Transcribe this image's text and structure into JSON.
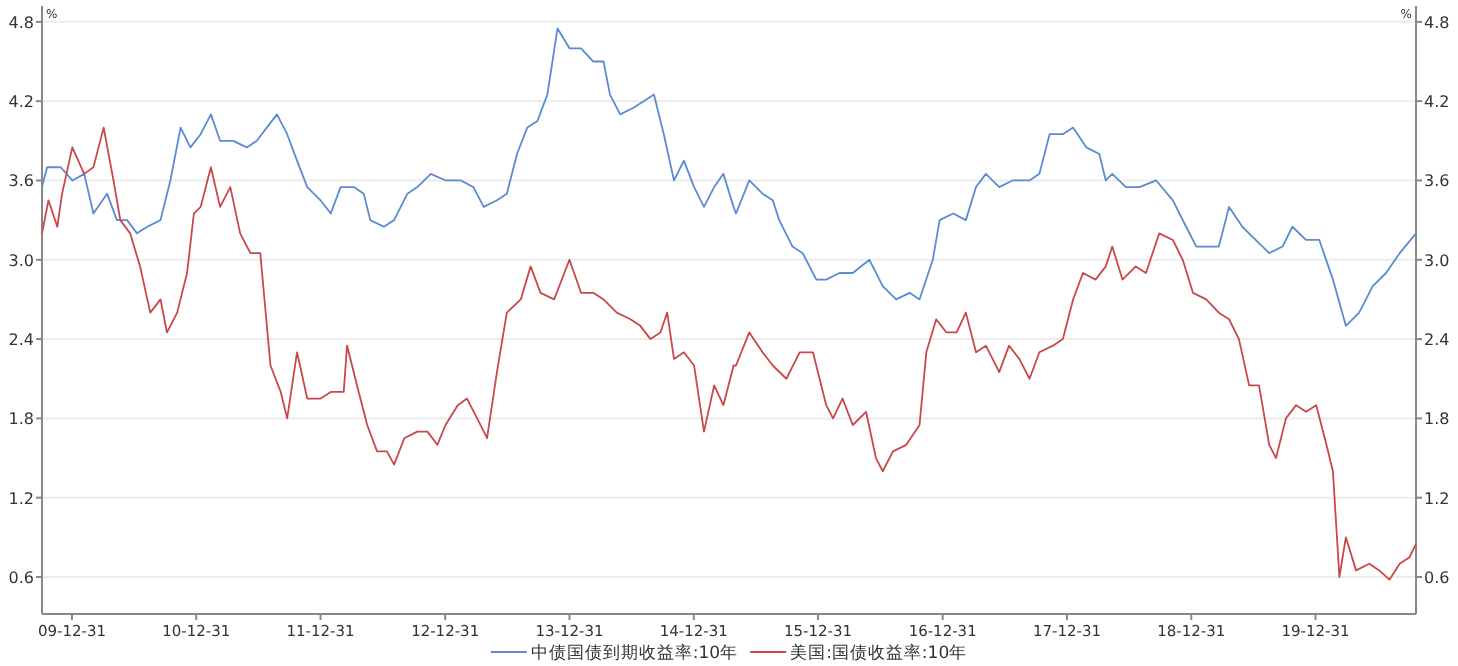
{
  "chart_data": {
    "type": "line",
    "ylabel": "%",
    "y2label": "%",
    "xlim": [
      "2009-10-04",
      "2020-10-21"
    ],
    "xticks": [
      {
        "value": "2009-12-31",
        "label": "09-12-31"
      },
      {
        "value": "2010-12-31",
        "label": "10-12-31"
      },
      {
        "value": "2011-12-31",
        "label": "11-12-31"
      },
      {
        "value": "2012-12-31",
        "label": "12-12-31"
      },
      {
        "value": "2013-12-31",
        "label": "13-12-31"
      },
      {
        "value": "2014-12-31",
        "label": "14-12-31"
      },
      {
        "value": "2015-12-31",
        "label": "15-12-31"
      },
      {
        "value": "2016-12-31",
        "label": "16-12-31"
      },
      {
        "value": "2017-12-31",
        "label": "17-12-31"
      },
      {
        "value": "2018-12-31",
        "label": "18-12-31"
      },
      {
        "value": "2019-12-31",
        "label": "19-12-31"
      }
    ],
    "ylim": [
      0.32,
      4.92
    ],
    "yticks": [
      0.6,
      1.2,
      1.8,
      2.4,
      {
        "value": 3,
        "label": "3.0"
      },
      3.6,
      4.2,
      4.8
    ],
    "y2lim": [
      0.32,
      4.92
    ],
    "y2ticks": [
      0.6,
      1.2,
      1.8,
      2.4,
      {
        "value": 3,
        "label": "3.0"
      },
      3.6,
      4.2,
      4.8
    ],
    "grid": "y",
    "legend": "bottom",
    "series": [
      {
        "name": "中债国债到期收益率:10年",
        "color": "#5b8bd0",
        "x": [
          "2009-10-04",
          "2009-10-19",
          "2009-11-28",
          "2010-01-01",
          "2010-02-05",
          "2010-03-04",
          "2010-04-13",
          "2010-05-12",
          "2010-06-11",
          "2010-07-10",
          "2010-08-09",
          "2010-09-17",
          "2010-10-16",
          "2010-11-15",
          "2010-12-14",
          "2011-01-13",
          "2011-02-12",
          "2011-03-11",
          "2011-04-19",
          "2011-05-28",
          "2011-06-27",
          "2011-07-26",
          "2011-08-25",
          "2011-09-24",
          "2011-10-23",
          "2011-11-22",
          "2011-12-31",
          "2012-01-30",
          "2012-02-28",
          "2012-04-07",
          "2012-05-06",
          "2012-05-25",
          "2012-07-04",
          "2012-08-03",
          "2012-09-11",
          "2012-10-10",
          "2012-11-19",
          "2013-01-01",
          "2013-02-15",
          "2013-03-24",
          "2013-04-23",
          "2013-06-01",
          "2013-06-30",
          "2013-07-30",
          "2013-08-29",
          "2013-09-28",
          "2013-10-27",
          "2013-11-26",
          "2013-12-31",
          "2014-02-03",
          "2014-03-11",
          "2014-04-10",
          "2014-04-29",
          "2014-05-29",
          "2014-07-07",
          "2014-08-06",
          "2014-09-05",
          "2014-10-04",
          "2014-11-03",
          "2014-12-02",
          "2015-01-01",
          "2015-01-30",
          "2015-03-01",
          "2015-03-28",
          "2015-04-27",
          "2015-05-04",
          "2015-06-12",
          "2015-07-21",
          "2015-08-20",
          "2015-09-08",
          "2015-10-17",
          "2015-11-16",
          "2015-12-26",
          "2016-01-24",
          "2016-03-03",
          "2016-04-11",
          "2016-05-30",
          "2016-07-08",
          "2016-08-16",
          "2016-09-25",
          "2016-10-24",
          "2016-12-02",
          "2016-12-22",
          "2017-01-31",
          "2017-03-09",
          "2017-04-08",
          "2017-05-07",
          "2017-06-15",
          "2017-07-24",
          "2017-09-12",
          "2017-10-11",
          "2017-11-10",
          "2017-12-19",
          "2018-01-18",
          "2018-02-26",
          "2018-04-05",
          "2018-04-24",
          "2018-05-13",
          "2018-06-22",
          "2018-08-01",
          "2018-09-19",
          "2018-11-07",
          "2018-12-16",
          "2019-01-15",
          "2019-02-23",
          "2019-03-22",
          "2019-04-21",
          "2019-05-30",
          "2019-07-08",
          "2019-08-17",
          "2019-09-25",
          "2019-10-24",
          "2019-12-03",
          "2020-01-11",
          "2020-02-20",
          "2020-03-29",
          "2020-05-07",
          "2020-06-16",
          "2020-07-25",
          "2020-09-03",
          "2020-10-21"
        ],
        "values": [
          3.55,
          3.7,
          3.7,
          3.6,
          3.65,
          3.35,
          3.5,
          3.3,
          3.3,
          3.2,
          3.25,
          3.3,
          3.6,
          4.0,
          3.85,
          3.95,
          4.1,
          3.9,
          3.9,
          3.85,
          3.9,
          4.0,
          4.1,
          3.95,
          3.75,
          3.55,
          3.45,
          3.35,
          3.55,
          3.55,
          3.5,
          3.3,
          3.25,
          3.3,
          3.5,
          3.55,
          3.65,
          3.6,
          3.6,
          3.55,
          3.4,
          3.45,
          3.5,
          3.8,
          4.0,
          4.05,
          4.25,
          4.75,
          4.6,
          4.6,
          4.5,
          4.5,
          4.25,
          4.1,
          4.15,
          4.2,
          4.25,
          3.95,
          3.6,
          3.75,
          3.55,
          3.4,
          3.55,
          3.65,
          3.4,
          3.35,
          3.6,
          3.5,
          3.45,
          3.3,
          3.1,
          3.05,
          2.85,
          2.85,
          2.9,
          2.9,
          3.0,
          2.8,
          2.7,
          2.75,
          2.7,
          3.0,
          3.3,
          3.35,
          3.3,
          3.55,
          3.65,
          3.55,
          3.6,
          3.6,
          3.65,
          3.95,
          3.95,
          4.0,
          3.85,
          3.8,
          3.6,
          3.65,
          3.55,
          3.55,
          3.6,
          3.45,
          3.25,
          3.1,
          3.1,
          3.1,
          3.4,
          3.25,
          3.15,
          3.05,
          3.1,
          3.25,
          3.15,
          3.15,
          2.85,
          2.5,
          2.6,
          2.8,
          2.9,
          3.05,
          3.2
        ]
      },
      {
        "name": "美国:国债收益率:10年",
        "color": "#c9484a",
        "x": [
          "2009-10-04",
          "2009-10-23",
          "2009-11-18",
          "2009-12-02",
          "2010-01-01",
          "2010-02-05",
          "2010-03-04",
          "2010-04-03",
          "2010-05-02",
          "2010-05-22",
          "2010-06-20",
          "2010-07-19",
          "2010-08-18",
          "2010-09-17",
          "2010-10-06",
          "2010-11-05",
          "2010-12-04",
          "2010-12-24",
          "2011-01-13",
          "2011-02-12",
          "2011-03-11",
          "2011-04-10",
          "2011-05-09",
          "2011-06-08",
          "2011-07-07",
          "2011-08-06",
          "2011-09-05",
          "2011-09-24",
          "2011-10-23",
          "2011-11-22",
          "2011-12-31",
          "2012-01-30",
          "2012-03-08",
          "2012-03-18",
          "2012-04-16",
          "2012-05-16",
          "2012-06-14",
          "2012-07-13",
          "2012-08-03",
          "2012-09-02",
          "2012-10-10",
          "2012-11-09",
          "2012-12-08",
          "2013-01-01",
          "2013-02-06",
          "2013-03-05",
          "2013-04-04",
          "2013-05-03",
          "2013-06-01",
          "2013-06-30",
          "2013-08-10",
          "2013-09-08",
          "2013-10-07",
          "2013-11-16",
          "2013-12-31",
          "2014-02-03",
          "2014-03-11",
          "2014-04-10",
          "2014-05-19",
          "2014-06-28",
          "2014-07-27",
          "2014-08-26",
          "2014-09-24",
          "2014-10-14",
          "2014-11-03",
          "2014-12-02",
          "2015-01-01",
          "2015-01-30",
          "2015-03-01",
          "2015-03-28",
          "2015-04-27",
          "2015-05-04",
          "2015-06-12",
          "2015-07-21",
          "2015-08-20",
          "2015-09-29",
          "2015-11-07",
          "2015-12-16",
          "2016-01-24",
          "2016-02-13",
          "2016-03-12",
          "2016-04-11",
          "2016-05-20",
          "2016-06-18",
          "2016-07-08",
          "2016-08-07",
          "2016-09-15",
          "2016-10-24",
          "2016-11-13",
          "2016-12-12",
          "2017-01-11",
          "2017-02-10",
          "2017-03-09",
          "2017-04-08",
          "2017-05-07",
          "2017-06-15",
          "2017-07-14",
          "2017-08-13",
          "2017-09-12",
          "2017-10-11",
          "2017-11-20",
          "2017-12-19",
          "2018-01-18",
          "2018-02-16",
          "2018-03-25",
          "2018-04-24",
          "2018-05-13",
          "2018-06-12",
          "2018-07-21",
          "2018-08-20",
          "2018-09-28",
          "2018-11-07",
          "2018-12-06",
          "2019-01-05",
          "2019-02-13",
          "2019-03-22",
          "2019-04-21",
          "2019-05-20",
          "2019-06-19",
          "2019-07-18",
          "2019-08-17",
          "2019-09-06",
          "2019-10-05",
          "2019-11-04",
          "2019-12-03",
          "2020-01-02",
          "2020-02-01",
          "2020-02-20",
          "2020-03-10",
          "2020-03-29",
          "2020-04-28",
          "2020-06-06",
          "2020-07-05",
          "2020-08-04",
          "2020-09-03",
          "2020-10-02",
          "2020-10-21"
        ],
        "values": [
          3.2,
          3.45,
          3.25,
          3.5,
          3.85,
          3.65,
          3.7,
          4.0,
          3.6,
          3.3,
          3.2,
          2.95,
          2.6,
          2.7,
          2.45,
          2.6,
          2.9,
          3.35,
          3.4,
          3.7,
          3.4,
          3.55,
          3.2,
          3.05,
          3.05,
          2.2,
          2.0,
          1.8,
          2.3,
          1.95,
          1.95,
          2.0,
          2.0,
          2.35,
          2.05,
          1.75,
          1.55,
          1.55,
          1.45,
          1.65,
          1.7,
          1.7,
          1.6,
          1.75,
          1.9,
          1.95,
          1.8,
          1.65,
          2.15,
          2.6,
          2.7,
          2.95,
          2.75,
          2.7,
          3.0,
          2.75,
          2.75,
          2.7,
          2.6,
          2.55,
          2.5,
          2.4,
          2.45,
          2.6,
          2.25,
          2.3,
          2.2,
          1.7,
          2.05,
          1.9,
          2.2,
          2.2,
          2.45,
          2.3,
          2.2,
          2.1,
          2.3,
          2.3,
          1.9,
          1.8,
          1.95,
          1.75,
          1.85,
          1.5,
          1.4,
          1.55,
          1.6,
          1.75,
          2.3,
          2.55,
          2.45,
          2.45,
          2.6,
          2.3,
          2.35,
          2.15,
          2.35,
          2.25,
          2.1,
          2.3,
          2.35,
          2.4,
          2.7,
          2.9,
          2.85,
          2.95,
          3.1,
          2.85,
          2.95,
          2.9,
          3.2,
          3.15,
          3.0,
          2.75,
          2.7,
          2.6,
          2.55,
          2.4,
          2.05,
          2.05,
          1.6,
          1.5,
          1.8,
          1.9,
          1.85,
          1.9,
          1.6,
          1.4,
          0.6,
          0.9,
          0.65,
          0.7,
          0.65,
          0.58,
          0.7,
          0.75,
          0.85
        ]
      }
    ]
  }
}
